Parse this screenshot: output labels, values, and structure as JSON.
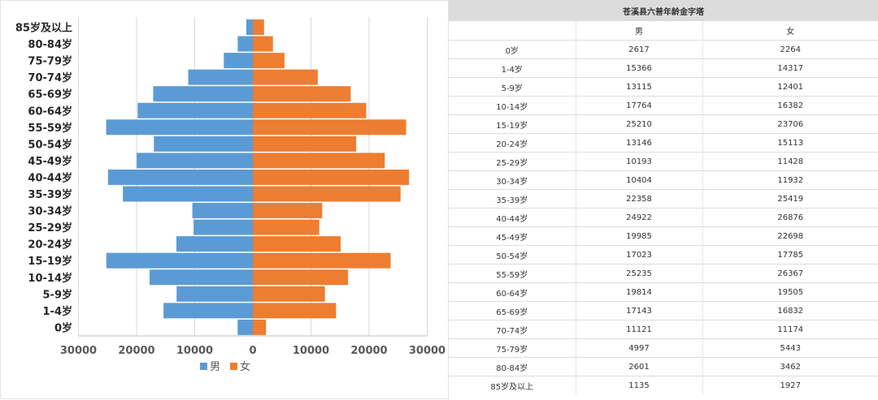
{
  "chart_data": {
    "type": "bar",
    "orientation": "horizontal",
    "layout": "population-pyramid",
    "categories": [
      "0岁",
      "1-4岁",
      "5-9岁",
      "10-14岁",
      "15-19岁",
      "20-24岁",
      "25-29岁",
      "30-34岁",
      "35-39岁",
      "40-44岁",
      "45-49岁",
      "50-54岁",
      "55-59岁",
      "60-64岁",
      "65-69岁",
      "70-74岁",
      "75-79岁",
      "80-84岁",
      "85岁及以上"
    ],
    "series": [
      {
        "name": "男",
        "color": "#5b9bd5",
        "values": [
          2617,
          15366,
          13115,
          17764,
          25210,
          13146,
          10193,
          10404,
          22358,
          24922,
          19985,
          17023,
          25235,
          19814,
          17143,
          11121,
          4997,
          2601,
          1135
        ]
      },
      {
        "name": "女",
        "color": "#ed7d31",
        "values": [
          2264,
          14317,
          12401,
          16382,
          23706,
          15113,
          11428,
          11932,
          25419,
          26876,
          22698,
          17785,
          26367,
          19505,
          16832,
          11174,
          5443,
          3462,
          1927
        ]
      }
    ],
    "xlim": [
      -30000,
      30000
    ],
    "x_ticks": [
      "30000",
      "20000",
      "10000",
      "0",
      "10000",
      "20000",
      "30000"
    ],
    "grid": true,
    "legend": "bottom"
  },
  "table": {
    "title": "苍溪县六普年龄金字塔",
    "headers": [
      "",
      "男",
      "女"
    ],
    "rows": [
      [
        "0岁",
        "2617",
        "2264"
      ],
      [
        "1-4岁",
        "15366",
        "14317"
      ],
      [
        "5-9岁",
        "13115",
        "12401"
      ],
      [
        "10-14岁",
        "17764",
        "16382"
      ],
      [
        "15-19岁",
        "25210",
        "23706"
      ],
      [
        "20-24岁",
        "13146",
        "15113"
      ],
      [
        "25-29岁",
        "10193",
        "11428"
      ],
      [
        "30-34岁",
        "10404",
        "11932"
      ],
      [
        "35-39岁",
        "22358",
        "25419"
      ],
      [
        "40-44岁",
        "24922",
        "26876"
      ],
      [
        "45-49岁",
        "19985",
        "22698"
      ],
      [
        "50-54岁",
        "17023",
        "17785"
      ],
      [
        "55-59岁",
        "25235",
        "26367"
      ],
      [
        "60-64岁",
        "19814",
        "19505"
      ],
      [
        "65-69岁",
        "17143",
        "16832"
      ],
      [
        "70-74岁",
        "11121",
        "11174"
      ],
      [
        "75-79岁",
        "4997",
        "5443"
      ],
      [
        "80-84岁",
        "2601",
        "3462"
      ],
      [
        "85岁及以上",
        "1135",
        "1927"
      ]
    ]
  }
}
